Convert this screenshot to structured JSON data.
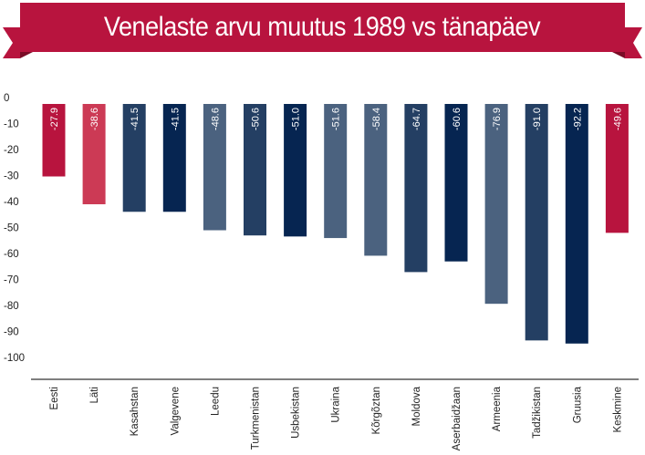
{
  "title": "Venelaste arvu muutus 1989 vs tänapäev",
  "colors": {
    "banner": "#b8143e",
    "banner_fold": "#7a0b26",
    "text": "#222222"
  },
  "chart_data": {
    "type": "bar",
    "categories": [
      "Eesti",
      "Läti",
      "Kasahstan",
      "Valgevene",
      "Leedu",
      "Turkmenistan",
      "Usbekistan",
      "Ukraina",
      "Kõrgõztan",
      "Moldova",
      "Aserbaidžaan",
      "Armeenia",
      "Tadžikistan",
      "Gruusia",
      "Keskmine"
    ],
    "values": [
      -27.9,
      -38.6,
      -41.5,
      -41.5,
      -48.6,
      -50.6,
      -51.0,
      -51.6,
      -58.4,
      -64.7,
      -60.6,
      -76.9,
      -91.0,
      -92.2,
      -49.6
    ],
    "value_labels": [
      "-27.9",
      "-38.6",
      "-41.5",
      "-41.5",
      "-48.6",
      "-50.6",
      "-51.0",
      "-51.6",
      "-58.4",
      "-64.7",
      "-60.6",
      "-76.9",
      "-91.0",
      "-92.2",
      "-49.6"
    ],
    "bar_colors": [
      "#b8143e",
      "#cc3a55",
      "#243f63",
      "#062551",
      "#4b627f",
      "#243f63",
      "#062551",
      "#4b627f",
      "#4b627f",
      "#243f63",
      "#062551",
      "#4b627f",
      "#243f63",
      "#062551",
      "#b8143e"
    ],
    "ylim": [
      -100,
      0
    ],
    "yticks": [
      0,
      -10,
      -20,
      -30,
      -40,
      -50,
      -60,
      -70,
      -80,
      -90,
      -100
    ],
    "ytick_labels": [
      "0",
      "-10",
      "-20",
      "-30",
      "-40",
      "-50",
      "-60",
      "-70",
      "-80",
      "-90",
      "-100"
    ],
    "grid": false,
    "xlabel": "",
    "ylabel": ""
  }
}
